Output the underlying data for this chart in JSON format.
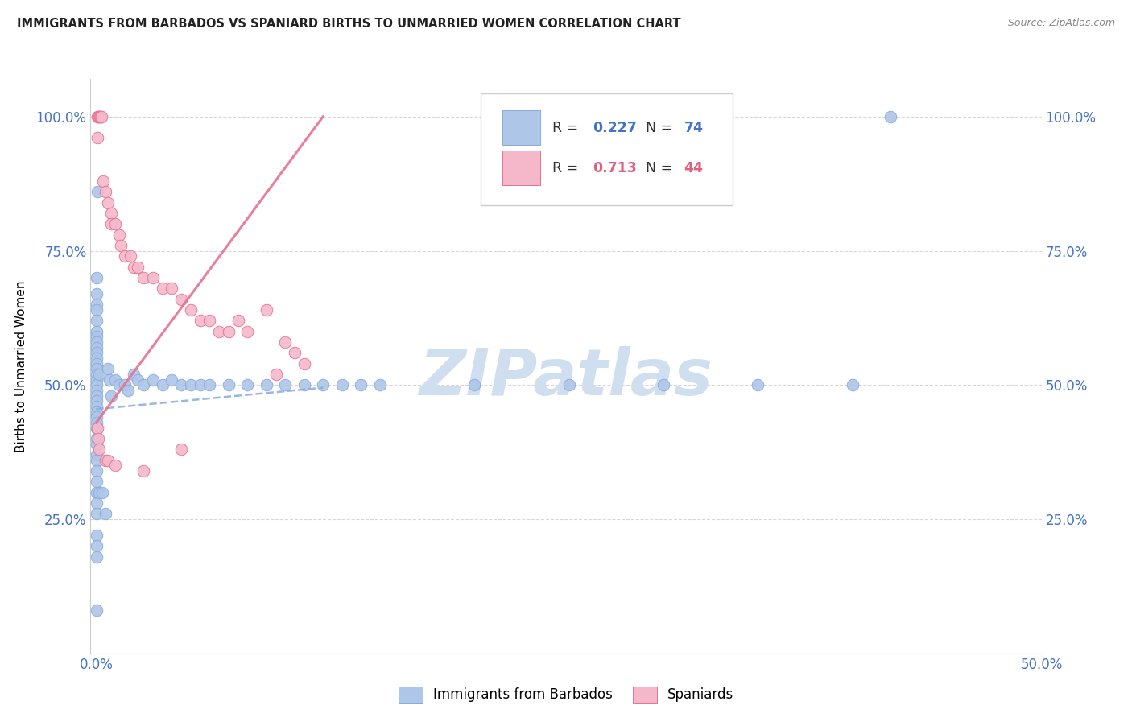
{
  "title": "IMMIGRANTS FROM BARBADOS VS SPANIARD BIRTHS TO UNMARRIED WOMEN CORRELATION CHART",
  "source": "Source: ZipAtlas.com",
  "ylabel": "Births to Unmarried Women",
  "x_tick_labels": [
    "0.0%",
    "",
    "",
    "",
    "",
    "50.0%"
  ],
  "x_tick_vals": [
    0,
    10,
    20,
    30,
    40,
    50
  ],
  "y_tick_labels_left": [
    "",
    "25.0%",
    "50.0%",
    "75.0%",
    "100.0%"
  ],
  "y_tick_labels_right": [
    "",
    "25.0%",
    "50.0%",
    "75.0%",
    "100.0%"
  ],
  "y_tick_vals": [
    0,
    25,
    50,
    75,
    100
  ],
  "xlim": [
    -0.3,
    50
  ],
  "ylim": [
    0,
    107
  ],
  "legend_label1": "Immigrants from Barbados",
  "legend_label2": "Spaniards",
  "R1": "0.227",
  "N1": "74",
  "R2": "0.713",
  "N2": "44",
  "color_blue": "#aec6e8",
  "color_pink": "#f5b8cb",
  "color_blue_text": "#4472c4",
  "color_pink_text": "#e06080",
  "trendline1_color": "#88aadd",
  "trendline2_color": "#e87090",
  "watermark_color": "#d0dff0",
  "blue_scatter": [
    [
      0.05,
      86
    ],
    [
      0.02,
      70
    ],
    [
      0.02,
      67
    ],
    [
      0.02,
      65
    ],
    [
      0.02,
      64
    ],
    [
      0.02,
      62
    ],
    [
      0.02,
      60
    ],
    [
      0.02,
      59
    ],
    [
      0.02,
      58
    ],
    [
      0.02,
      57
    ],
    [
      0.02,
      56
    ],
    [
      0.02,
      55
    ],
    [
      0.02,
      54
    ],
    [
      0.02,
      53
    ],
    [
      0.02,
      52
    ],
    [
      0.02,
      51
    ],
    [
      0.02,
      50
    ],
    [
      0.02,
      49
    ],
    [
      0.02,
      48
    ],
    [
      0.02,
      47
    ],
    [
      0.02,
      46
    ],
    [
      0.02,
      45
    ],
    [
      0.02,
      44
    ],
    [
      0.02,
      43
    ],
    [
      0.02,
      42
    ],
    [
      0.02,
      40
    ],
    [
      0.02,
      39
    ],
    [
      0.02,
      37
    ],
    [
      0.02,
      36
    ],
    [
      0.02,
      34
    ],
    [
      0.02,
      32
    ],
    [
      0.02,
      30
    ],
    [
      0.02,
      28
    ],
    [
      0.02,
      26
    ],
    [
      0.02,
      22
    ],
    [
      0.02,
      20
    ],
    [
      0.02,
      18
    ],
    [
      0.02,
      8
    ],
    [
      0.15,
      52
    ],
    [
      0.15,
      30
    ],
    [
      0.3,
      30
    ],
    [
      0.5,
      26
    ],
    [
      0.6,
      53
    ],
    [
      0.7,
      51
    ],
    [
      0.8,
      48
    ],
    [
      1.0,
      51
    ],
    [
      1.2,
      50
    ],
    [
      1.5,
      50
    ],
    [
      1.7,
      49
    ],
    [
      2.0,
      52
    ],
    [
      2.2,
      51
    ],
    [
      2.5,
      50
    ],
    [
      3.0,
      51
    ],
    [
      3.5,
      50
    ],
    [
      4.0,
      51
    ],
    [
      4.5,
      50
    ],
    [
      5.0,
      50
    ],
    [
      5.5,
      50
    ],
    [
      6.0,
      50
    ],
    [
      7.0,
      50
    ],
    [
      8.0,
      50
    ],
    [
      9.0,
      50
    ],
    [
      10.0,
      50
    ],
    [
      11.0,
      50
    ],
    [
      12.0,
      50
    ],
    [
      13.0,
      50
    ],
    [
      14.0,
      50
    ],
    [
      15.0,
      50
    ],
    [
      20.0,
      50
    ],
    [
      25.0,
      50
    ],
    [
      30.0,
      50
    ],
    [
      35.0,
      50
    ],
    [
      40.0,
      50
    ],
    [
      42.0,
      100
    ]
  ],
  "pink_scatter": [
    [
      0.05,
      100
    ],
    [
      0.1,
      100
    ],
    [
      0.15,
      100
    ],
    [
      0.2,
      100
    ],
    [
      0.25,
      100
    ],
    [
      0.28,
      100
    ],
    [
      0.05,
      96
    ],
    [
      0.35,
      88
    ],
    [
      0.5,
      86
    ],
    [
      0.6,
      84
    ],
    [
      0.8,
      82
    ],
    [
      0.8,
      80
    ],
    [
      1.0,
      80
    ],
    [
      1.2,
      78
    ],
    [
      1.3,
      76
    ],
    [
      1.5,
      74
    ],
    [
      1.8,
      74
    ],
    [
      2.0,
      72
    ],
    [
      2.2,
      72
    ],
    [
      2.5,
      70
    ],
    [
      3.0,
      70
    ],
    [
      3.5,
      68
    ],
    [
      4.0,
      68
    ],
    [
      4.5,
      66
    ],
    [
      5.0,
      64
    ],
    [
      5.5,
      62
    ],
    [
      6.0,
      62
    ],
    [
      6.5,
      60
    ],
    [
      7.0,
      60
    ],
    [
      7.5,
      62
    ],
    [
      8.0,
      60
    ],
    [
      9.0,
      64
    ],
    [
      10.0,
      58
    ],
    [
      10.5,
      56
    ],
    [
      11.0,
      54
    ],
    [
      0.05,
      42
    ],
    [
      0.1,
      40
    ],
    [
      0.15,
      38
    ],
    [
      0.5,
      36
    ],
    [
      0.6,
      36
    ],
    [
      1.0,
      35
    ],
    [
      2.5,
      34
    ],
    [
      4.5,
      38
    ],
    [
      9.5,
      52
    ]
  ],
  "trendline1_x": [
    0,
    12
  ],
  "trendline1_y": [
    45.5,
    49.5
  ],
  "trendline2_x": [
    0,
    12
  ],
  "trendline2_y": [
    43,
    100
  ]
}
